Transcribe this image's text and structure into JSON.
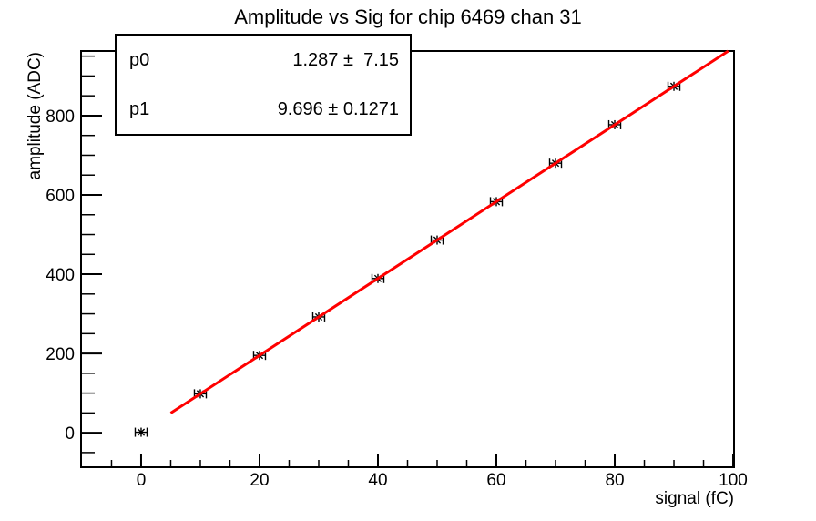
{
  "title": "Amplitude vs Sig for chip 6469 chan 31",
  "stats_box": {
    "rows": [
      {
        "name": "p0",
        "value": "1.287 ±  7.15"
      },
      {
        "name": "p1",
        "value": "9.696 ± 0.1271"
      }
    ]
  },
  "colors": {
    "background": "#ffffff",
    "frame": "#000000",
    "marker": "#000000",
    "fit_line": "#ff0000",
    "text": "#000000"
  },
  "chart_data": {
    "type": "scatter",
    "title": "Amplitude vs Sig for chip 6469 chan 31",
    "xlabel": "signal (fC)",
    "ylabel": "amplitude (ADC)",
    "xlim": [
      -10.15,
      100.15
    ],
    "ylim": [
      -87,
      963
    ],
    "grid": false,
    "legend": "none",
    "x_major_ticks": [
      0,
      20,
      40,
      60,
      80,
      100
    ],
    "x_minor_step": 5,
    "y_major_ticks": [
      0,
      200,
      400,
      600,
      800
    ],
    "y_minor_step": 50,
    "series": [
      {
        "name": "data-points",
        "marker": "asterisk-with-x-error-bars",
        "color": "#000000",
        "x": [
          0,
          10,
          20,
          30,
          40,
          50,
          60,
          70,
          80,
          90
        ],
        "y": [
          1.3,
          98.2,
          195.2,
          292.2,
          389.1,
          486.1,
          583.0,
          680.0,
          777.0,
          873.9
        ],
        "xerr": 1.0
      },
      {
        "name": "linear-fit",
        "type": "line",
        "color": "#ff0000",
        "fit": {
          "p0": 1.287,
          "p0_err": 7.15,
          "p1": 9.696,
          "p1_err": 0.1271
        },
        "x_range": [
          5,
          100
        ]
      }
    ]
  }
}
